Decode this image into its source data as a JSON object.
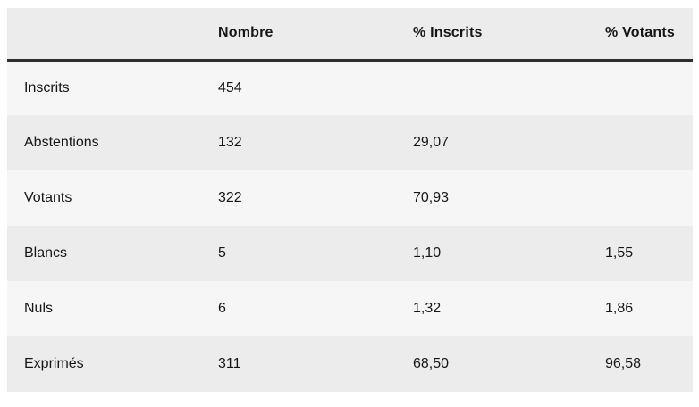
{
  "table": {
    "columns": [
      {
        "label": ""
      },
      {
        "label": "Nombre"
      },
      {
        "label": "% Inscrits"
      },
      {
        "label": "% Votants"
      }
    ],
    "rows": [
      {
        "label": "Inscrits",
        "nombre": "454",
        "pct_inscrits": "",
        "pct_votants": ""
      },
      {
        "label": "Abstentions",
        "nombre": "132",
        "pct_inscrits": "29,07",
        "pct_votants": ""
      },
      {
        "label": "Votants",
        "nombre": "322",
        "pct_inscrits": "70,93",
        "pct_votants": ""
      },
      {
        "label": "Blancs",
        "nombre": "5",
        "pct_inscrits": "1,10",
        "pct_votants": "1,55"
      },
      {
        "label": "Nuls",
        "nombre": "6",
        "pct_inscrits": "1,32",
        "pct_votants": "1,86"
      },
      {
        "label": "Exprimés",
        "nombre": "311",
        "pct_inscrits": "68,50",
        "pct_votants": "96,58"
      }
    ],
    "colors": {
      "header_bg": "#ececec",
      "row_light_bg": "#f6f6f6",
      "row_dark_bg": "#ececec",
      "header_rule": "#2e2e2e",
      "text": "#161616",
      "page_bg": "#ffffff"
    }
  }
}
